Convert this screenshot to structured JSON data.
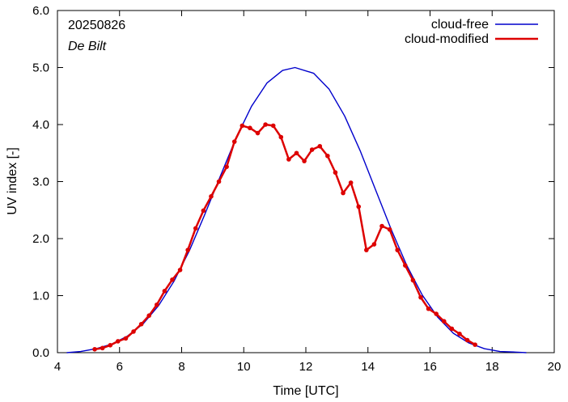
{
  "chart_data": {
    "type": "line",
    "title": "",
    "xlabel": "Time  [UTC]",
    "ylabel": "UV index  [-]",
    "xlim": [
      4,
      20
    ],
    "ylim": [
      0,
      6
    ],
    "xticks": [
      4,
      6,
      8,
      10,
      12,
      14,
      16,
      18,
      20
    ],
    "xtick_labels": [
      "4",
      "6",
      "8",
      "10",
      "12",
      "14",
      "16",
      "18",
      "20"
    ],
    "yticks": [
      0,
      1,
      2,
      3,
      4,
      5,
      6
    ],
    "ytick_labels": [
      "0.0",
      "1.0",
      "2.0",
      "3.0",
      "4.0",
      "5.0",
      "6.0"
    ],
    "grid": false,
    "legend_position": "top-right",
    "annotations": {
      "date": "20250826",
      "station": "De Bilt"
    },
    "series": [
      {
        "name": "cloud-free",
        "color": "#0000cc",
        "markers": false,
        "x": [
          4.3,
          4.75,
          5.25,
          5.75,
          6.25,
          6.75,
          7.25,
          7.75,
          8.25,
          8.75,
          9.25,
          9.75,
          10.25,
          10.75,
          11.25,
          11.65,
          12.25,
          12.75,
          13.25,
          13.75,
          14.25,
          14.75,
          15.25,
          15.75,
          16.25,
          16.75,
          17.25,
          17.75,
          18.25,
          18.75,
          19.1
        ],
        "y": [
          0.0,
          0.02,
          0.07,
          0.15,
          0.29,
          0.5,
          0.82,
          1.25,
          1.79,
          2.43,
          3.1,
          3.76,
          4.32,
          4.73,
          4.95,
          5.0,
          4.9,
          4.62,
          4.15,
          3.54,
          2.85,
          2.16,
          1.53,
          1.01,
          0.62,
          0.34,
          0.17,
          0.07,
          0.02,
          0.01,
          0.0
        ]
      },
      {
        "name": "cloud-modified",
        "color": "#dd0000",
        "markers": true,
        "x": [
          5.2,
          5.45,
          5.7,
          5.95,
          6.2,
          6.45,
          6.7,
          6.95,
          7.2,
          7.45,
          7.7,
          7.95,
          8.2,
          8.45,
          8.7,
          8.95,
          9.2,
          9.45,
          9.7,
          9.95,
          10.2,
          10.45,
          10.7,
          10.95,
          11.2,
          11.45,
          11.7,
          11.95,
          12.2,
          12.45,
          12.7,
          12.95,
          13.2,
          13.45,
          13.7,
          13.95,
          14.2,
          14.45,
          14.7,
          14.95,
          15.2,
          15.45,
          15.7,
          15.95,
          16.2,
          16.45,
          16.7,
          16.95,
          17.2,
          17.45
        ],
        "y": [
          0.06,
          0.08,
          0.13,
          0.2,
          0.25,
          0.37,
          0.5,
          0.65,
          0.84,
          1.08,
          1.28,
          1.45,
          1.8,
          2.18,
          2.49,
          2.74,
          3.0,
          3.26,
          3.7,
          3.98,
          3.94,
          3.85,
          4.0,
          3.98,
          3.78,
          3.39,
          3.5,
          3.36,
          3.56,
          3.62,
          3.45,
          3.16,
          2.8,
          2.98,
          2.56,
          1.8,
          1.9,
          2.22,
          2.16,
          1.8,
          1.53,
          1.27,
          0.97,
          0.77,
          0.68,
          0.55,
          0.42,
          0.33,
          0.22,
          0.14
        ]
      }
    ]
  }
}
